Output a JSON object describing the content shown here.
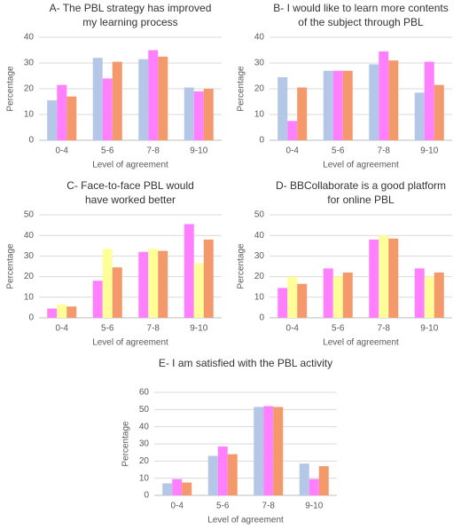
{
  "chart_data": [
    {
      "type": "bar",
      "title": [
        "A- The PBL strategy has improved",
        "my learning process"
      ],
      "categories": [
        "0-4",
        "5-6",
        "7-8",
        "9-10"
      ],
      "x_label": "Level of agreement",
      "y_label": "Percentage",
      "ylim": [
        0,
        40
      ],
      "yticks": [
        0,
        10,
        20,
        30,
        40
      ],
      "grid": true,
      "series": [
        {
          "color": "#b4c7e7",
          "values": [
            15.5,
            32,
            31.5,
            20.5
          ]
        },
        {
          "color": "#ff80ff",
          "values": [
            21.5,
            24,
            35,
            19
          ]
        },
        {
          "color": "#f4996b",
          "values": [
            17,
            30.5,
            32.5,
            20
          ]
        }
      ]
    },
    {
      "type": "bar",
      "title": [
        "B- I would like to learn more contents",
        "of the subject through PBL"
      ],
      "categories": [
        "0-4",
        "5-6",
        "7-8",
        "9-10"
      ],
      "x_label": "Level of agreement",
      "y_label": "Percentage",
      "ylim": [
        0,
        40
      ],
      "yticks": [
        0,
        10,
        20,
        30,
        40
      ],
      "grid": true,
      "series": [
        {
          "color": "#b4c7e7",
          "values": [
            24.5,
            27,
            29.5,
            18.5
          ]
        },
        {
          "color": "#ff80ff",
          "values": [
            7.5,
            27,
            34.5,
            30.5
          ]
        },
        {
          "color": "#f4996b",
          "values": [
            20.5,
            27,
            31,
            21.5
          ]
        }
      ]
    },
    {
      "type": "bar",
      "title": [
        "C- Face-to-face PBL would",
        "have worked better"
      ],
      "categories": [
        "0-4",
        "5-6",
        "7-8",
        "9-10"
      ],
      "x_label": "Level of agreement",
      "y_label": "Percentage",
      "ylim": [
        0,
        50
      ],
      "yticks": [
        0,
        10,
        20,
        30,
        40,
        50
      ],
      "grid": true,
      "series": [
        {
          "color": "#ff80ff",
          "values": [
            4.5,
            18,
            32,
            45.5
          ]
        },
        {
          "color": "#ffff99",
          "values": [
            6.5,
            33.5,
            33.5,
            26.5
          ]
        },
        {
          "color": "#f4996b",
          "values": [
            5.5,
            24.5,
            32.5,
            38
          ]
        }
      ]
    },
    {
      "type": "bar",
      "title": [
        "D- BBCollaborate is a good platform",
        "for online PBL"
      ],
      "categories": [
        "0-4",
        "5-6",
        "7-8",
        "9-10"
      ],
      "x_label": "Level of agreement",
      "y_label": "Percentage",
      "ylim": [
        0,
        50
      ],
      "yticks": [
        0,
        10,
        20,
        30,
        40,
        50
      ],
      "grid": true,
      "series": [
        {
          "color": "#ff80ff",
          "values": [
            14.5,
            24,
            38,
            24
          ]
        },
        {
          "color": "#ffff99",
          "values": [
            20,
            20,
            40,
            20
          ]
        },
        {
          "color": "#f4996b",
          "values": [
            16.5,
            22,
            38.5,
            22
          ]
        }
      ]
    },
    {
      "type": "bar",
      "title": [
        "E- I am satisfied with the PBL activity"
      ],
      "categories": [
        "0-4",
        "5-6",
        "7-8",
        "9-10"
      ],
      "x_label": "Level of agreement",
      "y_label": "Percentage",
      "ylim": [
        0,
        60
      ],
      "yticks": [
        0,
        10,
        20,
        30,
        40,
        50,
        60
      ],
      "grid": true,
      "series": [
        {
          "color": "#b4c7e7",
          "values": [
            7,
            23,
            51.5,
            18.5
          ]
        },
        {
          "color": "#ff80ff",
          "values": [
            9.5,
            28.5,
            52,
            9.5
          ]
        },
        {
          "color": "#f4996b",
          "values": [
            7.5,
            24,
            51.5,
            17
          ]
        }
      ]
    }
  ]
}
